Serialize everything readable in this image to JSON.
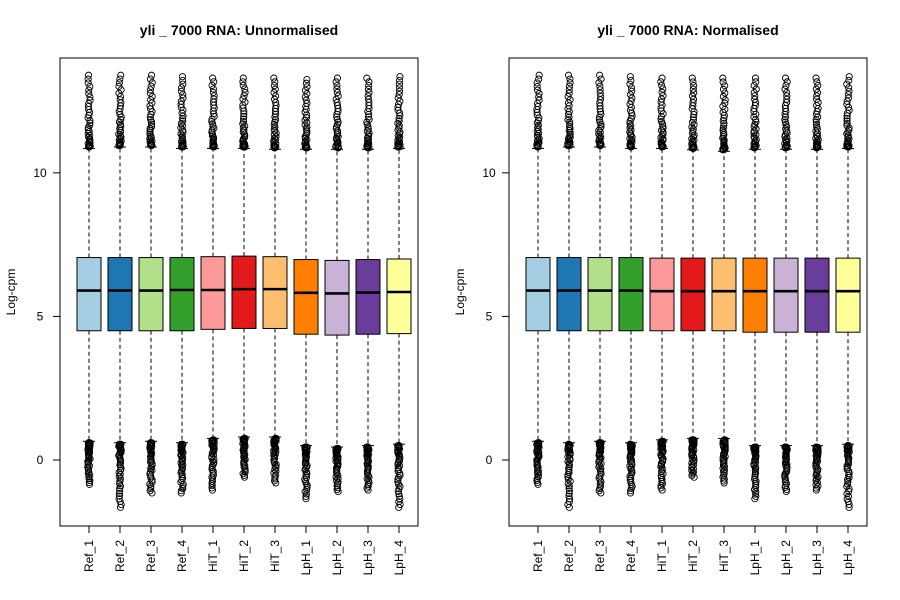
{
  "chart_data": [
    {
      "type": "boxplot",
      "title": "yli _ 7000  RNA: Unnormalised",
      "xlabel": "",
      "ylabel": "Log-cpm",
      "ylim": [
        -2.3,
        14.0
      ],
      "yticks": [
        0,
        5,
        10
      ],
      "categories": [
        "Ref_1",
        "Ref_2",
        "Ref_3",
        "Ref_4",
        "HiT_1",
        "HiT_2",
        "HiT_3",
        "LpH_1",
        "LpH_2",
        "LpH_3",
        "LpH_4"
      ],
      "colors": [
        "#A6CEE3",
        "#1F78B4",
        "#B2DF8A",
        "#33A02C",
        "#FB9A99",
        "#E31A1C",
        "#FDBF6F",
        "#FF7F00",
        "#CAB2D6",
        "#6A3D9A",
        "#FFFF99"
      ],
      "boxes": [
        {
          "q1": 4.5,
          "median": 5.9,
          "q3": 7.05,
          "whisker_low": 0.65,
          "whisker_high": 10.85,
          "out_high_max": 13.4,
          "out_low_min": -0.85
        },
        {
          "q1": 4.5,
          "median": 5.9,
          "q3": 7.05,
          "whisker_low": 0.6,
          "whisker_high": 10.9,
          "out_high_max": 13.4,
          "out_low_min": -1.65
        },
        {
          "q1": 4.5,
          "median": 5.9,
          "q3": 7.05,
          "whisker_low": 0.65,
          "whisker_high": 10.9,
          "out_high_max": 13.4,
          "out_low_min": -1.15
        },
        {
          "q1": 4.5,
          "median": 5.92,
          "q3": 7.05,
          "whisker_low": 0.6,
          "whisker_high": 10.85,
          "out_high_max": 13.35,
          "out_low_min": -1.15
        },
        {
          "q1": 4.55,
          "median": 5.92,
          "q3": 7.08,
          "whisker_low": 0.75,
          "whisker_high": 10.85,
          "out_high_max": 13.3,
          "out_low_min": -1.05
        },
        {
          "q1": 4.58,
          "median": 5.95,
          "q3": 7.1,
          "whisker_low": 0.8,
          "whisker_high": 10.85,
          "out_high_max": 13.3,
          "out_low_min": -0.6
        },
        {
          "q1": 4.58,
          "median": 5.95,
          "q3": 7.08,
          "whisker_low": 0.8,
          "whisker_high": 10.82,
          "out_high_max": 13.3,
          "out_low_min": -0.8
        },
        {
          "q1": 4.38,
          "median": 5.82,
          "q3": 6.98,
          "whisker_low": 0.5,
          "whisker_high": 10.82,
          "out_high_max": 13.25,
          "out_low_min": -1.35
        },
        {
          "q1": 4.35,
          "median": 5.8,
          "q3": 6.95,
          "whisker_low": 0.45,
          "whisker_high": 10.82,
          "out_high_max": 13.3,
          "out_low_min": -1.1
        },
        {
          "q1": 4.38,
          "median": 5.83,
          "q3": 6.98,
          "whisker_low": 0.5,
          "whisker_high": 10.82,
          "out_high_max": 13.3,
          "out_low_min": -1.05
        },
        {
          "q1": 4.4,
          "median": 5.85,
          "q3": 7.0,
          "whisker_low": 0.55,
          "whisker_high": 10.85,
          "out_high_max": 13.35,
          "out_low_min": -1.65
        }
      ]
    },
    {
      "type": "boxplot",
      "title": "yli _ 7000  RNA: Normalised",
      "xlabel": "",
      "ylabel": "Log-cpm",
      "ylim": [
        -2.3,
        14.0
      ],
      "yticks": [
        0,
        5,
        10
      ],
      "categories": [
        "Ref_1",
        "Ref_2",
        "Ref_3",
        "Ref_4",
        "HiT_1",
        "HiT_2",
        "HiT_3",
        "LpH_1",
        "LpH_2",
        "LpH_3",
        "LpH_4"
      ],
      "colors": [
        "#A6CEE3",
        "#1F78B4",
        "#B2DF8A",
        "#33A02C",
        "#FB9A99",
        "#E31A1C",
        "#FDBF6F",
        "#FF7F00",
        "#CAB2D6",
        "#6A3D9A",
        "#FFFF99"
      ],
      "boxes": [
        {
          "q1": 4.5,
          "median": 5.9,
          "q3": 7.05,
          "whisker_low": 0.65,
          "whisker_high": 10.85,
          "out_high_max": 13.4,
          "out_low_min": -0.85
        },
        {
          "q1": 4.5,
          "median": 5.9,
          "q3": 7.05,
          "whisker_low": 0.6,
          "whisker_high": 10.9,
          "out_high_max": 13.4,
          "out_low_min": -1.65
        },
        {
          "q1": 4.5,
          "median": 5.9,
          "q3": 7.05,
          "whisker_low": 0.65,
          "whisker_high": 10.9,
          "out_high_max": 13.4,
          "out_low_min": -1.15
        },
        {
          "q1": 4.5,
          "median": 5.9,
          "q3": 7.05,
          "whisker_low": 0.6,
          "whisker_high": 10.85,
          "out_high_max": 13.35,
          "out_low_min": -1.15
        },
        {
          "q1": 4.5,
          "median": 5.88,
          "q3": 7.03,
          "whisker_low": 0.7,
          "whisker_high": 10.85,
          "out_high_max": 13.3,
          "out_low_min": -1.05
        },
        {
          "q1": 4.5,
          "median": 5.88,
          "q3": 7.03,
          "whisker_low": 0.75,
          "whisker_high": 10.8,
          "out_high_max": 13.3,
          "out_low_min": -0.6
        },
        {
          "q1": 4.5,
          "median": 5.88,
          "q3": 7.03,
          "whisker_low": 0.75,
          "whisker_high": 10.75,
          "out_high_max": 13.3,
          "out_low_min": -0.8
        },
        {
          "q1": 4.45,
          "median": 5.88,
          "q3": 7.03,
          "whisker_low": 0.5,
          "whisker_high": 10.82,
          "out_high_max": 13.3,
          "out_low_min": -1.35
        },
        {
          "q1": 4.45,
          "median": 5.88,
          "q3": 7.03,
          "whisker_low": 0.5,
          "whisker_high": 10.82,
          "out_high_max": 13.3,
          "out_low_min": -1.1
        },
        {
          "q1": 4.45,
          "median": 5.88,
          "q3": 7.03,
          "whisker_low": 0.5,
          "whisker_high": 10.82,
          "out_high_max": 13.3,
          "out_low_min": -1.05
        },
        {
          "q1": 4.45,
          "median": 5.88,
          "q3": 7.03,
          "whisker_low": 0.55,
          "whisker_high": 10.85,
          "out_high_max": 13.35,
          "out_low_min": -1.65
        }
      ]
    }
  ]
}
